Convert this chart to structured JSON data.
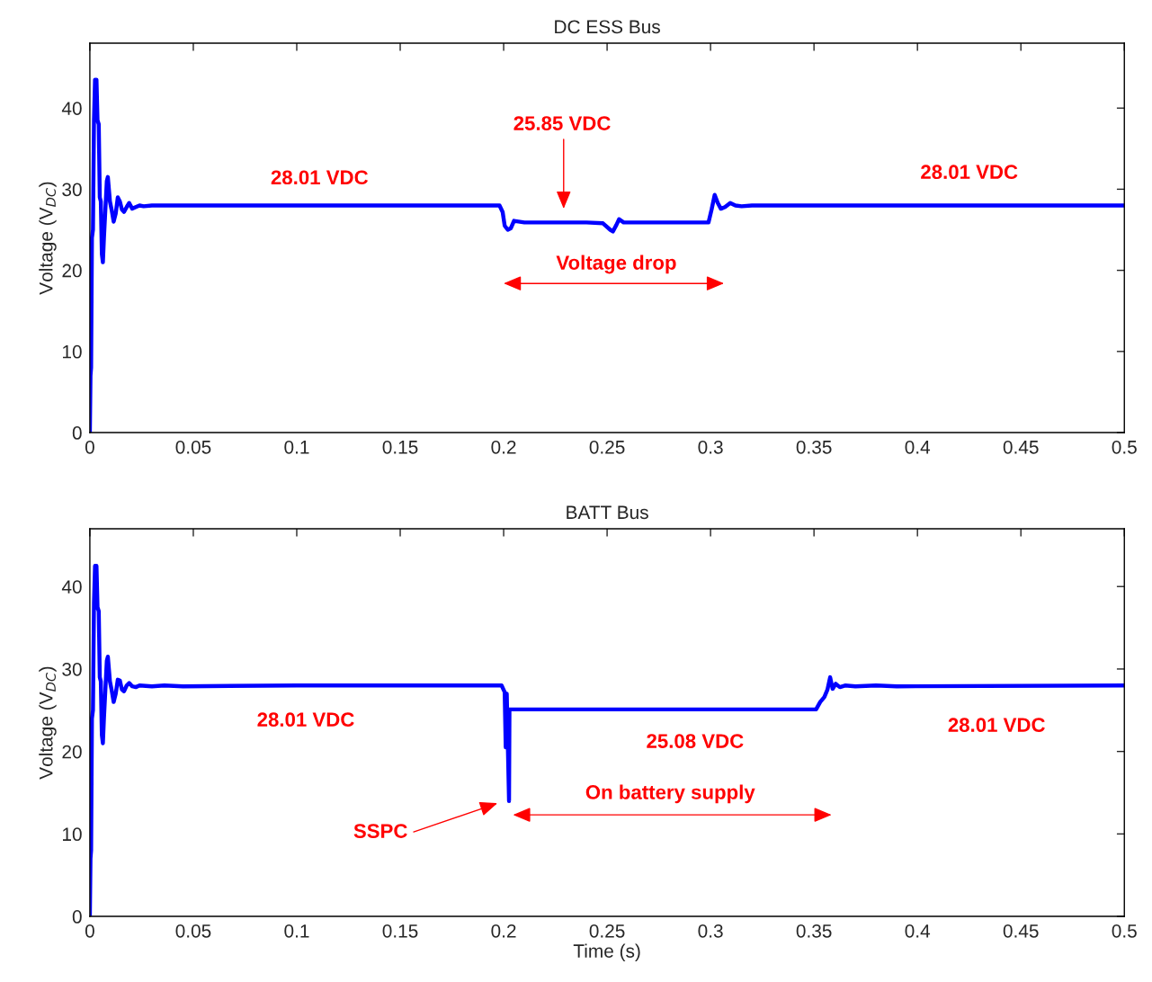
{
  "chart_data": [
    {
      "type": "line",
      "title": "DC ESS Bus",
      "ylabel": "Voltage (V$_{DC}$)",
      "xlim": [
        0,
        0.5
      ],
      "xticks": [
        0,
        0.05,
        0.1,
        0.15,
        0.2,
        0.25,
        0.3,
        0.35,
        0.4,
        0.45,
        0.5
      ],
      "ylim": [
        0,
        48
      ],
      "yticks": [
        0,
        10,
        20,
        30,
        40
      ],
      "grid": false,
      "series": [
        {
          "color": "#0000ff",
          "x": [
            0,
            0.0003,
            0.0006,
            0.001,
            0.0015,
            0.002,
            0.0025,
            0.0032,
            0.0037,
            0.0043,
            0.0048,
            0.0053,
            0.0058,
            0.0063,
            0.0068,
            0.0075,
            0.0082,
            0.0087,
            0.0092,
            0.0097,
            0.0105,
            0.0115,
            0.0125,
            0.0135,
            0.0145,
            0.0155,
            0.0165,
            0.0178,
            0.019,
            0.0205,
            0.0222,
            0.024,
            0.026,
            0.03,
            0.034,
            0.1,
            0.198,
            0.1995,
            0.2005,
            0.202,
            0.2035,
            0.205,
            0.21,
            0.22,
            0.23,
            0.24,
            0.248,
            0.2515,
            0.2528,
            0.2545,
            0.2558,
            0.258,
            0.27,
            0.29,
            0.299,
            0.3005,
            0.302,
            0.3035,
            0.305,
            0.307,
            0.3095,
            0.312,
            0.315,
            0.32,
            0.33,
            0.4,
            0.5
          ],
          "values": [
            0,
            7,
            8,
            24,
            25,
            38.5,
            43.5,
            43.5,
            38.5,
            38,
            29,
            28.5,
            22,
            21,
            24,
            27.5,
            31,
            31.5,
            30,
            28.5,
            27.5,
            26,
            27,
            29,
            28.5,
            27.5,
            27.2,
            27.8,
            28.3,
            27.6,
            27.8,
            28.0,
            27.9,
            28.0,
            28.0,
            28.0,
            28.0,
            27.2,
            25.5,
            25.0,
            25.2,
            26.1,
            25.9,
            25.9,
            25.9,
            25.9,
            25.8,
            25.0,
            24.8,
            25.6,
            26.3,
            25.9,
            25.9,
            25.9,
            25.9,
            27.5,
            29.3,
            28.3,
            27.6,
            27.8,
            28.3,
            28.0,
            27.9,
            28.0,
            28.0,
            28.0,
            28.0
          ]
        }
      ],
      "annotations": [
        "28.01 VDC",
        "28.01 VDC",
        "25.85 VDC",
        "Voltage drop"
      ]
    },
    {
      "type": "line",
      "title": "BATT Bus",
      "xlabel": "Time (s)",
      "ylabel": "Voltage (V$_{DC}$)",
      "xlim": [
        0,
        0.5
      ],
      "xticks": [
        0,
        0.05,
        0.1,
        0.15,
        0.2,
        0.25,
        0.3,
        0.35,
        0.4,
        0.45,
        0.5
      ],
      "ylim": [
        0,
        47
      ],
      "yticks": [
        0,
        10,
        20,
        30,
        40
      ],
      "grid": false,
      "series": [
        {
          "color": "#0000ff",
          "x": [
            0,
            0.0003,
            0.0006,
            0.001,
            0.0015,
            0.002,
            0.0025,
            0.0032,
            0.0037,
            0.0043,
            0.0048,
            0.0053,
            0.0058,
            0.0063,
            0.0068,
            0.0075,
            0.0082,
            0.0087,
            0.0092,
            0.0097,
            0.0105,
            0.0115,
            0.0125,
            0.0135,
            0.0145,
            0.0155,
            0.0165,
            0.0178,
            0.019,
            0.0205,
            0.0222,
            0.024,
            0.03,
            0.036,
            0.045,
            0.1,
            0.199,
            0.2005,
            0.201,
            0.2015,
            0.2026,
            0.2028,
            0.203,
            0.25,
            0.351,
            0.353,
            0.355,
            0.3565,
            0.3578,
            0.359,
            0.3605,
            0.3625,
            0.365,
            0.37,
            0.38,
            0.39,
            0.5
          ],
          "values": [
            0,
            7,
            8,
            24,
            25,
            38,
            42.5,
            42.5,
            37.5,
            37,
            29,
            28.5,
            22,
            21,
            24,
            27.5,
            31,
            31.5,
            30,
            28.5,
            27.5,
            26,
            27,
            28.7,
            28.6,
            27.5,
            27.3,
            28.0,
            28.3,
            27.9,
            27.8,
            28.0,
            27.9,
            28.0,
            27.9,
            28.0,
            28.0,
            27.2,
            20.5,
            27,
            14,
            25.1,
            25.1,
            25.1,
            25.1,
            26.0,
            26.6,
            27.5,
            29.0,
            27.6,
            28.2,
            27.8,
            28.0,
            27.9,
            28.0,
            27.9,
            28.0
          ]
        }
      ],
      "annotations": [
        "28.01 VDC",
        "28.01 VDC",
        "25.08 VDC",
        "SSPC",
        "On battery supply"
      ]
    }
  ]
}
